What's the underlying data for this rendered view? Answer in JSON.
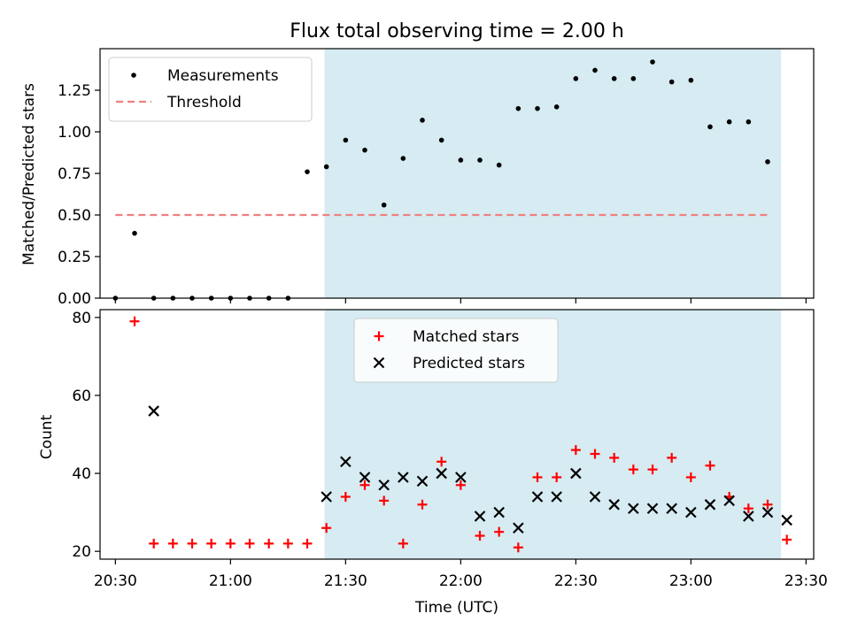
{
  "chart_data": {
    "type": "scatter",
    "title": "Flux total observing time = 2.00 h",
    "xlabel": "Time (UTC)",
    "x_tick_labels": [
      "20:30",
      "21:00",
      "21:30",
      "22:00",
      "22:30",
      "23:00",
      "23:30"
    ],
    "x_ticks_min": [
      1230,
      1260,
      1290,
      1320,
      1350,
      1380,
      1410
    ],
    "xlim_min": [
      1226,
      1412
    ],
    "shaded_span_min": [
      1284.5,
      1403.5
    ],
    "shaded_color": "#add8e6",
    "x_times": [
      "20:35",
      "20:40",
      "20:45",
      "20:50",
      "20:55",
      "21:00",
      "21:05",
      "21:10",
      "21:15",
      "21:20",
      "21:25",
      "21:30",
      "21:35",
      "21:40",
      "21:45",
      "21:50",
      "21:55",
      "22:00",
      "22:05",
      "22:10",
      "22:15",
      "22:20",
      "22:25",
      "22:30",
      "22:35",
      "22:40",
      "22:45",
      "22:50",
      "22:55",
      "23:00",
      "23:05",
      "23:10",
      "23:15",
      "23:20",
      "23:25"
    ],
    "x_min": [
      1235,
      1240,
      1245,
      1250,
      1255,
      1260,
      1265,
      1270,
      1275,
      1280,
      1285,
      1290,
      1295,
      1300,
      1305,
      1310,
      1315,
      1320,
      1325,
      1330,
      1335,
      1340,
      1345,
      1350,
      1355,
      1360,
      1365,
      1370,
      1375,
      1380,
      1385,
      1390,
      1395,
      1400,
      1405
    ],
    "panels": [
      {
        "ylabel": "Matched/Predicted stars",
        "ylim": [
          0,
          1.5
        ],
        "y_ticks": [
          0,
          0.25,
          0.5,
          0.75,
          1.0,
          1.25
        ],
        "y_tick_labels": [
          "0.00",
          "0.25",
          "0.50",
          "0.75",
          "1.00",
          "1.25"
        ],
        "legend_position": "upper-left",
        "series": [
          {
            "name": "Measurements",
            "marker": "dot",
            "color": "#000000",
            "x_min": [
              1230,
              1235,
              1240,
              1245,
              1250,
              1255,
              1260,
              1265,
              1270,
              1275,
              1280,
              1285,
              1290,
              1295,
              1300,
              1305,
              1310,
              1315,
              1320,
              1325,
              1330,
              1335,
              1340,
              1345,
              1350,
              1355,
              1360,
              1365,
              1370,
              1375,
              1380,
              1385,
              1390,
              1395,
              1400
            ],
            "values": [
              0.0,
              0.39,
              0.0,
              0.0,
              0.0,
              0.0,
              0.0,
              0.0,
              0.0,
              0.0,
              0.76,
              0.79,
              0.95,
              0.89,
              0.56,
              0.84,
              1.07,
              0.95,
              0.83,
              0.83,
              0.8,
              1.14,
              1.14,
              1.15,
              1.32,
              1.37,
              1.32,
              1.32,
              1.42,
              1.3,
              1.31,
              1.03,
              1.06,
              1.06,
              0.82
            ]
          }
        ],
        "threshold": {
          "name": "Threshold",
          "value": 0.5,
          "x_range_min": [
            1230,
            1400
          ],
          "color": "#f08080"
        }
      },
      {
        "ylabel": "Count",
        "ylim": [
          18,
          82
        ],
        "y_ticks": [
          20,
          40,
          60,
          80
        ],
        "y_tick_labels": [
          "20",
          "40",
          "60",
          "80"
        ],
        "legend_position": "upper-center",
        "series": [
          {
            "name": "Matched stars",
            "marker": "plus",
            "color": "#ff0000",
            "values": [
              79,
              22,
              22,
              22,
              22,
              22,
              22,
              22,
              22,
              22,
              26,
              34,
              37,
              33,
              22,
              32,
              43,
              37,
              24,
              25,
              21,
              39,
              39,
              46,
              45,
              44,
              41,
              41,
              44,
              39,
              42,
              34,
              31,
              32,
              23
            ]
          },
          {
            "name": "Predicted stars",
            "marker": "x",
            "color": "#000000",
            "values": [
              null,
              56,
              null,
              null,
              null,
              null,
              null,
              null,
              null,
              null,
              34,
              43,
              39,
              37,
              39,
              38,
              40,
              39,
              29,
              30,
              26,
              34,
              34,
              40,
              34,
              32,
              31,
              31,
              31,
              30,
              32,
              33,
              29,
              30,
              28
            ]
          }
        ]
      }
    ]
  }
}
